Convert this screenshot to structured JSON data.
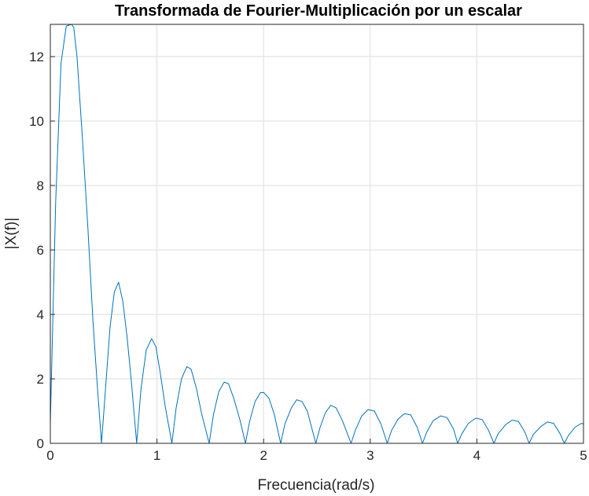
{
  "chart_data": {
    "type": "line",
    "title": "Transformada de Fourier-Multiplicación por un escalar",
    "xlabel": "Frecuencia(rad/s)",
    "ylabel": "|X(f)|",
    "xlim": [
      0,
      5
    ],
    "ylim": [
      0,
      13
    ],
    "xticks": [
      "0",
      "1",
      "2",
      "3",
      "4",
      "5"
    ],
    "yticks": [
      "0",
      "2",
      "4",
      "6",
      "8",
      "10",
      "12"
    ],
    "grid": true,
    "line_color": "#0072BD",
    "x": [
      0,
      0.05,
      0.1,
      0.15,
      0.2,
      0.22,
      0.25,
      0.3,
      0.35,
      0.4,
      0.44,
      0.48,
      0.52,
      0.56,
      0.6,
      0.64,
      0.68,
      0.72,
      0.76,
      0.81,
      0.85,
      0.9,
      0.95,
      0.99,
      1.03,
      1.08,
      1.14,
      1.18,
      1.23,
      1.28,
      1.32,
      1.37,
      1.42,
      1.49,
      1.53,
      1.58,
      1.63,
      1.67,
      1.72,
      1.78,
      1.83,
      1.87,
      1.92,
      1.97,
      2.0,
      2.05,
      2.1,
      2.16,
      2.2,
      2.26,
      2.31,
      2.36,
      2.41,
      2.49,
      2.53,
      2.58,
      2.63,
      2.68,
      2.74,
      2.82,
      2.86,
      2.92,
      2.98,
      3.04,
      3.1,
      3.16,
      3.2,
      3.26,
      3.32,
      3.38,
      3.44,
      3.49,
      3.53,
      3.59,
      3.66,
      3.72,
      3.78,
      3.82,
      3.86,
      3.92,
      3.99,
      4.05,
      4.11,
      4.16,
      4.2,
      4.27,
      4.33,
      4.39,
      4.45,
      4.49,
      4.53,
      4.6,
      4.66,
      4.72,
      4.78,
      4.82,
      4.86,
      4.92,
      4.98,
      5.0
    ],
    "y": [
      0.6,
      7.5,
      11.8,
      12.95,
      13.0,
      12.9,
      12.0,
      9.5,
      6.8,
      3.8,
      1.8,
      0,
      1.8,
      3.6,
      4.7,
      5.0,
      4.4,
      3.3,
      1.9,
      0,
      1.7,
      2.9,
      3.25,
      3.0,
      2.2,
      1.1,
      0,
      1.1,
      2.0,
      2.38,
      2.3,
      1.7,
      0.9,
      0,
      0.9,
      1.6,
      1.9,
      1.85,
      1.4,
      0.7,
      0,
      0.7,
      1.3,
      1.57,
      1.58,
      1.4,
      0.9,
      0,
      0.6,
      1.1,
      1.35,
      1.3,
      1.0,
      0,
      0.5,
      0.95,
      1.18,
      1.1,
      0.7,
      0,
      0.4,
      0.85,
      1.05,
      1.0,
      0.6,
      0,
      0.4,
      0.75,
      0.92,
      0.88,
      0.5,
      0,
      0.35,
      0.7,
      0.85,
      0.8,
      0.45,
      0,
      0.3,
      0.62,
      0.78,
      0.74,
      0.4,
      0,
      0.3,
      0.58,
      0.72,
      0.68,
      0.35,
      0,
      0.28,
      0.52,
      0.66,
      0.62,
      0.3,
      0,
      0.25,
      0.5,
      0.62,
      0.6
    ]
  }
}
